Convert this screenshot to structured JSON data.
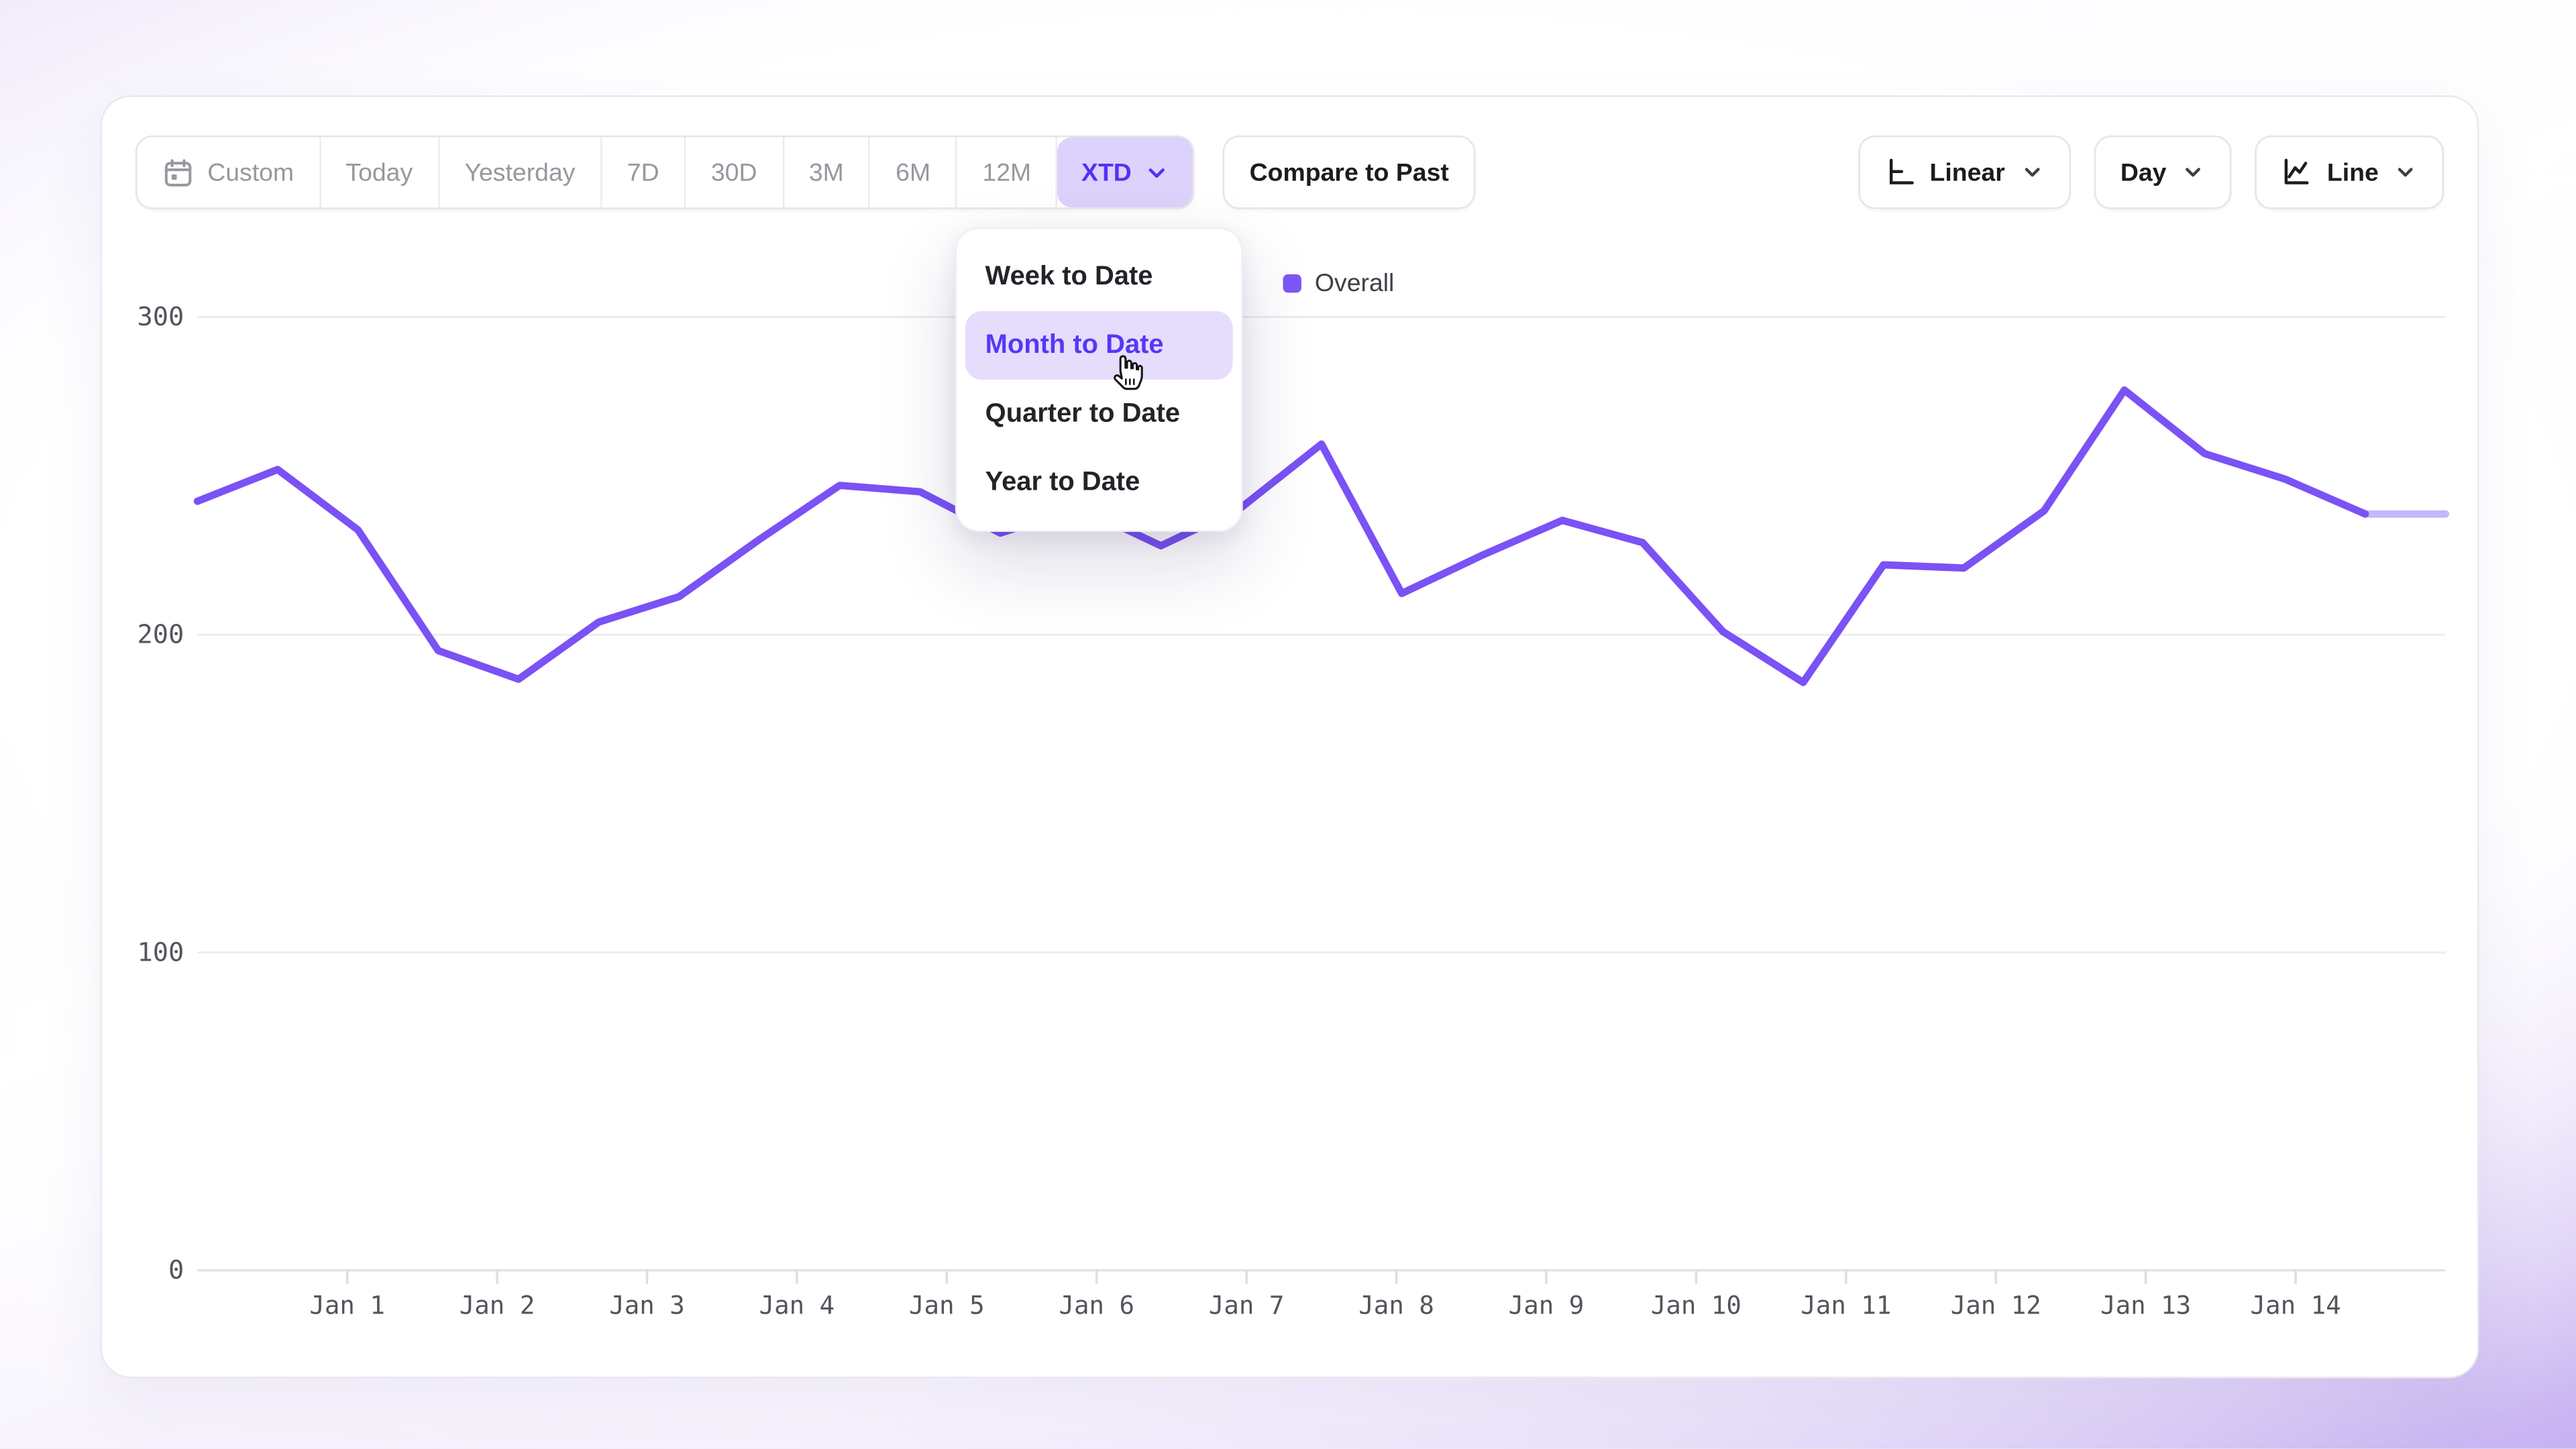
{
  "toolbar": {
    "ranges": [
      "Custom",
      "Today",
      "Yesterday",
      "7D",
      "30D",
      "3M",
      "6M",
      "12M"
    ],
    "xtd_label": "XTD",
    "compare_label": "Compare to Past",
    "scale_label": "Linear",
    "granularity_label": "Day",
    "chart_type_label": "Line"
  },
  "dropdown": {
    "items": [
      "Week to Date",
      "Month to Date",
      "Quarter to Date",
      "Year to Date"
    ],
    "active_item": "Month to Date"
  },
  "legend": {
    "label": "Overall"
  },
  "colors": {
    "accent": "#5431f4",
    "accent_bg": "#dcd2fb",
    "menu_active_bg": "#e6ddfc",
    "line": "#7a52f5",
    "grid": "#ededf0",
    "axis": "#e2e2e6",
    "tick_label": "#54545c",
    "legend_swatch": "#7c58f6"
  },
  "chart_data": {
    "type": "line",
    "title": "",
    "xlabel": "",
    "ylabel": "",
    "categories": [
      "Jan 1",
      "Jan 2",
      "Jan 3",
      "Jan 4",
      "Jan 5",
      "Jan 6",
      "Jan 7",
      "Jan 8",
      "Jan 9",
      "Jan 10",
      "Jan 11",
      "Jan 12",
      "Jan 13",
      "Jan 14"
    ],
    "y_ticks": [
      0,
      100,
      200,
      300
    ],
    "ylim": [
      0,
      300
    ],
    "grid": "horizontal",
    "legend_position": "top-center",
    "series": [
      {
        "name": "Overall",
        "points_per_day": 2,
        "values": [
          242,
          252,
          233,
          195,
          186,
          204,
          212,
          230,
          247,
          245,
          232,
          240,
          228,
          240,
          260,
          213,
          225,
          236,
          229,
          201,
          185,
          222,
          221,
          239,
          277,
          257,
          249,
          238,
          238
        ],
        "last_segment_faded": true
      }
    ]
  }
}
